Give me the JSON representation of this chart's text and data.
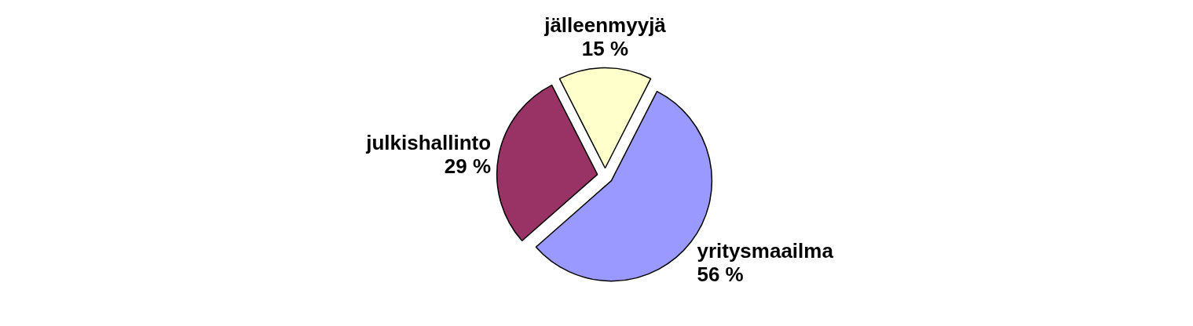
{
  "chart_data": {
    "type": "pie",
    "categories": [
      "jälleenmyyjä",
      "yritysmaailma",
      "julkishallinto"
    ],
    "values": [
      15,
      56,
      29
    ],
    "colors": [
      "#ffffcc",
      "#9999ff",
      "#993366"
    ],
    "value_labels": [
      "15 %",
      "56 %",
      "29 %"
    ]
  }
}
